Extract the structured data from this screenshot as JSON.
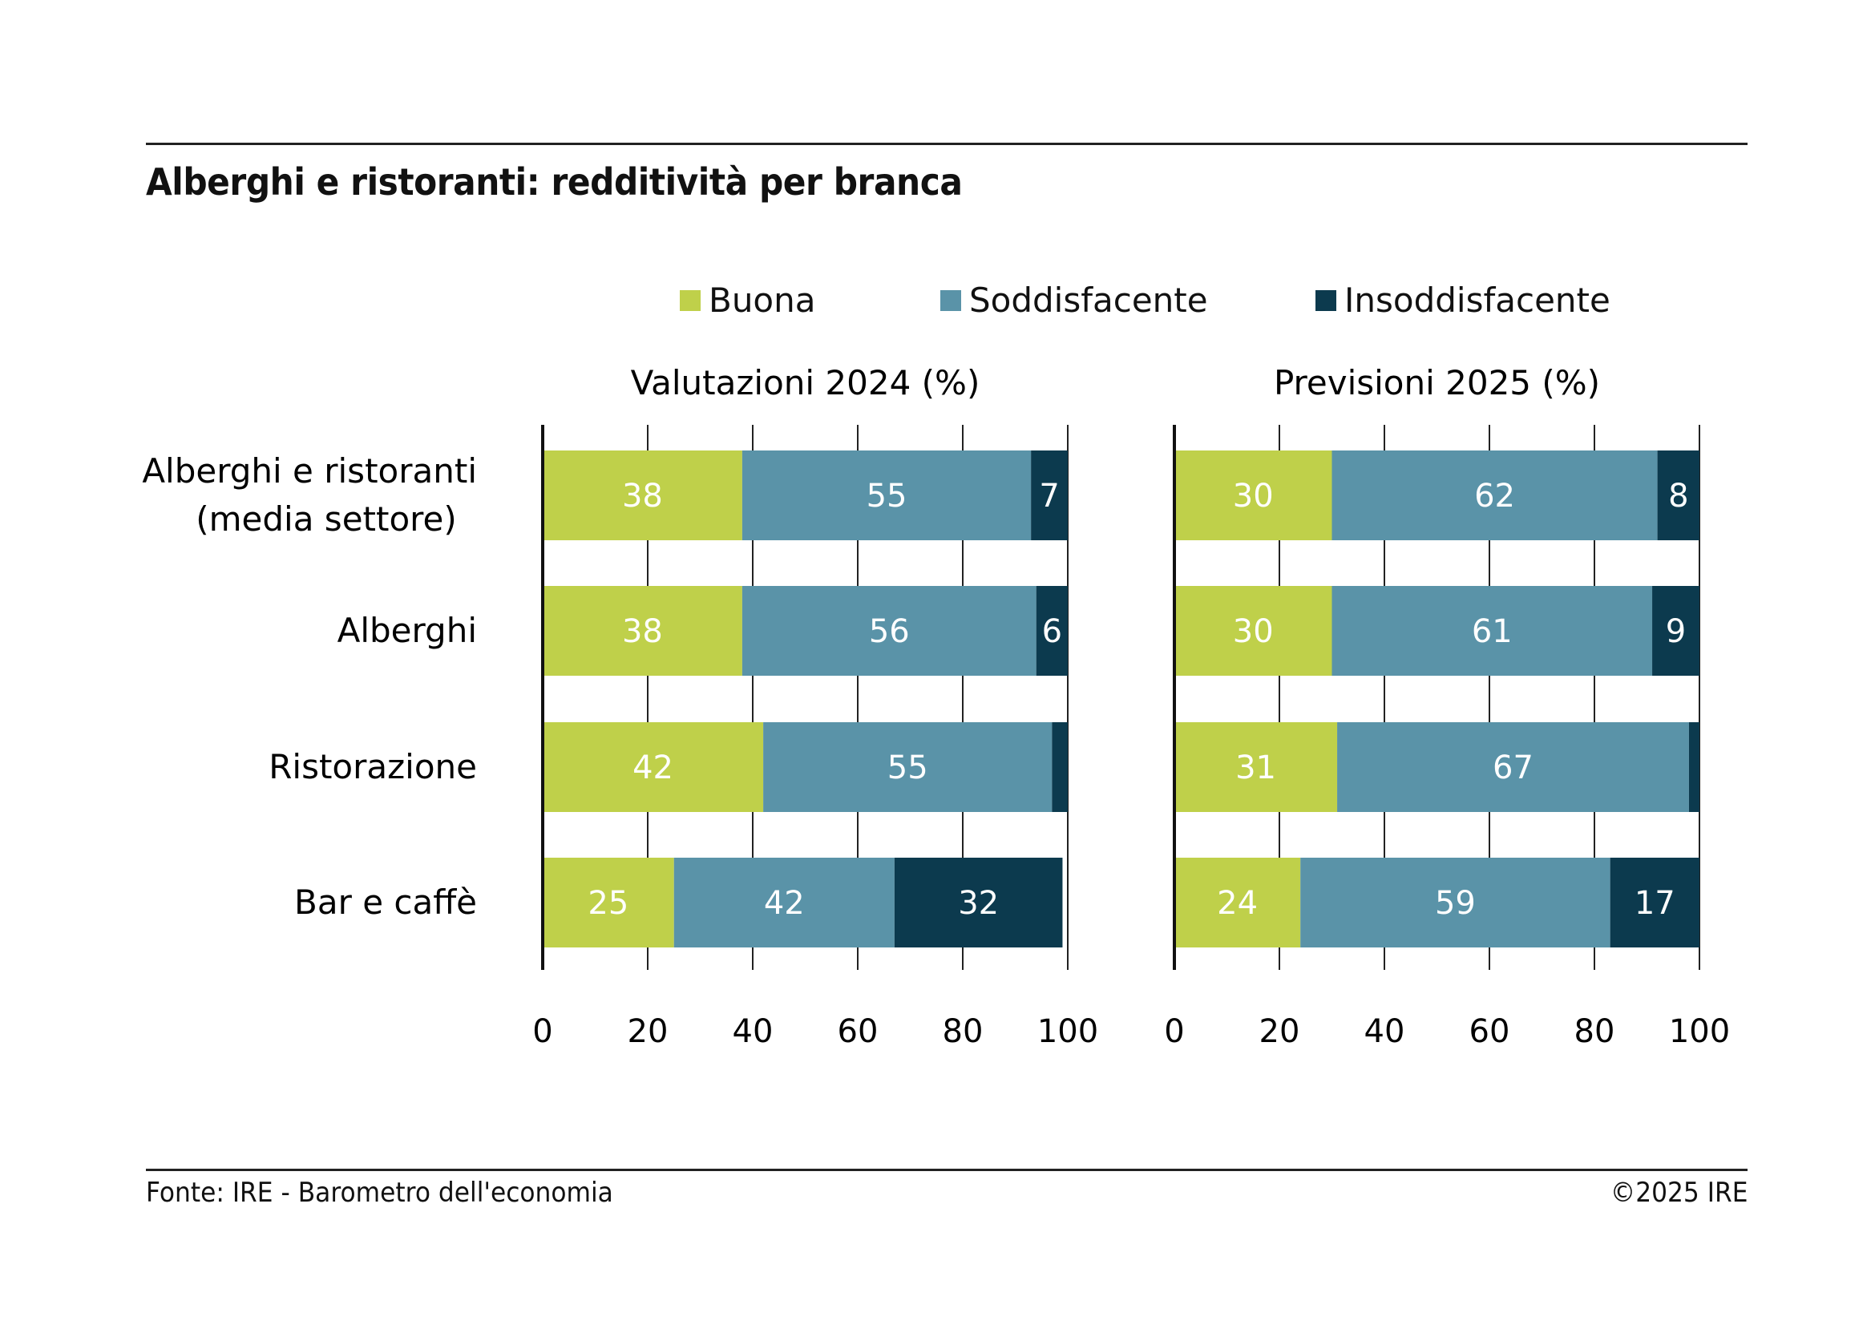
{
  "title": "Alberghi e ristoranti: redditività per branca",
  "footer": {
    "source": "Fonte: IRE - Barometro dell'economia",
    "copyright": "©2025 IRE"
  },
  "colors": {
    "buona": "#bfd04a",
    "soddisfacente": "#5a93a8",
    "insoddisfacente": "#0c3a4e"
  },
  "chart_data": [
    {
      "type": "bar",
      "orientation": "horizontal",
      "stacked": true,
      "title": "Valutazioni 2024 (%)",
      "categories": [
        "Alberghi e ristoranti (media settore)",
        "Alberghi",
        "Ristorazione",
        "Bar e caffè"
      ],
      "series": [
        {
          "name": "Buona",
          "values": [
            38,
            38,
            42,
            25
          ],
          "labels": [
            "38",
            "38",
            "42",
            "25"
          ]
        },
        {
          "name": "Soddisfacente",
          "values": [
            55,
            56,
            55,
            42
          ],
          "labels": [
            "55",
            "56",
            "55",
            "42"
          ]
        },
        {
          "name": "Insoddisfacente",
          "values": [
            7,
            6,
            3,
            32
          ],
          "labels": [
            "7",
            "6",
            "",
            "32"
          ]
        }
      ],
      "xlim": [
        0,
        100
      ],
      "xticks": [
        "0",
        "20",
        "40",
        "60",
        "80",
        "100"
      ],
      "grid": true,
      "legend": "top"
    },
    {
      "type": "bar",
      "orientation": "horizontal",
      "stacked": true,
      "title": "Previsioni 2025 (%)",
      "categories": [
        "Alberghi e ristoranti (media settore)",
        "Alberghi",
        "Ristorazione",
        "Bar e caffè"
      ],
      "series": [
        {
          "name": "Buona",
          "values": [
            30,
            30,
            31,
            24
          ],
          "labels": [
            "30",
            "30",
            "31",
            "24"
          ]
        },
        {
          "name": "Soddisfacente",
          "values": [
            62,
            61,
            67,
            59
          ],
          "labels": [
            "62",
            "61",
            "67",
            "59"
          ]
        },
        {
          "name": "Insoddisfacente",
          "values": [
            8,
            9,
            2,
            17
          ],
          "labels": [
            "8",
            "9",
            "",
            "17"
          ]
        }
      ],
      "xlim": [
        0,
        100
      ],
      "xticks": [
        "0",
        "20",
        "40",
        "60",
        "80",
        "100"
      ],
      "grid": true,
      "legend": "top"
    }
  ],
  "category_lines": [
    [
      "Alberghi e ristoranti",
      "(media settore)"
    ],
    [
      "Alberghi"
    ],
    [
      "Ristorazione"
    ],
    [
      "Bar e caffè"
    ]
  ]
}
